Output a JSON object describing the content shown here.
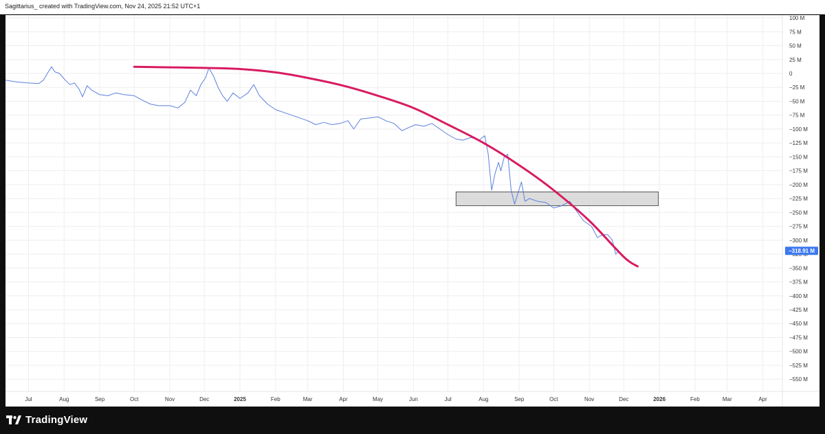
{
  "header": {
    "caption": "Sagittarius_ created with TradingView.com, Nov 24, 2025 21:52 UTC+1"
  },
  "footer": {
    "brand": "TradingView"
  },
  "colors": {
    "series_line": "#5b7fe0",
    "arc": "#d81b60",
    "zone_fill": "#d6d6d6",
    "zone_border": "#333333",
    "price_tag": "#3c78f0",
    "grid": "#eeeeee"
  },
  "chart_data": {
    "type": "line",
    "y_unit": "M",
    "ylim": [
      -570,
      100
    ],
    "y_ticks": [
      {
        "value": 100,
        "label": "100 M"
      },
      {
        "value": 75,
        "label": "75 M"
      },
      {
        "value": 50,
        "label": "50 M"
      },
      {
        "value": 25,
        "label": "25 M"
      },
      {
        "value": 0,
        "label": "0"
      },
      {
        "value": -25,
        "label": "−25 M"
      },
      {
        "value": -50,
        "label": "−50 M"
      },
      {
        "value": -75,
        "label": "−75 M"
      },
      {
        "value": -100,
        "label": "−100 M"
      },
      {
        "value": -125,
        "label": "−125 M"
      },
      {
        "value": -150,
        "label": "−150 M"
      },
      {
        "value": -175,
        "label": "−175 M"
      },
      {
        "value": -200,
        "label": "−200 M"
      },
      {
        "value": -225,
        "label": "−225 M"
      },
      {
        "value": -250,
        "label": "−250 M"
      },
      {
        "value": -275,
        "label": "−275 M"
      },
      {
        "value": -300,
        "label": "−300 M"
      },
      {
        "value": -325,
        "label": "−325 M"
      },
      {
        "value": -350,
        "label": "−350 M"
      },
      {
        "value": -375,
        "label": "−375 M"
      },
      {
        "value": -400,
        "label": "−400 M"
      },
      {
        "value": -425,
        "label": "−425 M"
      },
      {
        "value": -450,
        "label": "−450 M"
      },
      {
        "value": -475,
        "label": "−475 M"
      },
      {
        "value": -500,
        "label": "−500 M"
      },
      {
        "value": -525,
        "label": "−525 M"
      },
      {
        "value": -550,
        "label": "−550 M"
      }
    ],
    "x_ticks": [
      {
        "label": "Jul",
        "date": "2024-07-01"
      },
      {
        "label": "Aug",
        "date": "2024-08-01"
      },
      {
        "label": "Sep",
        "date": "2024-09-01"
      },
      {
        "label": "Oct",
        "date": "2024-10-01"
      },
      {
        "label": "Nov",
        "date": "2024-11-01"
      },
      {
        "label": "Dec",
        "date": "2024-12-01"
      },
      {
        "label": "2025",
        "date": "2025-01-01",
        "bold": true
      },
      {
        "label": "Feb",
        "date": "2025-02-01"
      },
      {
        "label": "Mar",
        "date": "2025-03-01"
      },
      {
        "label": "Apr",
        "date": "2025-04-01"
      },
      {
        "label": "May",
        "date": "2025-05-01"
      },
      {
        "label": "Jun",
        "date": "2025-06-01"
      },
      {
        "label": "Jul",
        "date": "2025-07-01"
      },
      {
        "label": "Aug",
        "date": "2025-08-01"
      },
      {
        "label": "Sep",
        "date": "2025-09-01"
      },
      {
        "label": "Oct",
        "date": "2025-10-01"
      },
      {
        "label": "Nov",
        "date": "2025-11-01"
      },
      {
        "label": "Dec",
        "date": "2025-12-01"
      },
      {
        "label": "2026",
        "date": "2026-01-01",
        "bold": true
      },
      {
        "label": "Feb",
        "date": "2026-02-01"
      },
      {
        "label": "Mar",
        "date": "2026-03-01"
      },
      {
        "label": "Apr",
        "date": "2026-04-01"
      }
    ],
    "xlim": [
      "2024-06-11",
      "2026-04-18"
    ],
    "series": [
      {
        "values": [
          [
            "2024-06-11",
            -12
          ],
          [
            "2024-06-20",
            -15
          ],
          [
            "2024-06-30",
            -17
          ],
          [
            "2024-07-10",
            -18
          ],
          [
            "2024-07-14",
            -12
          ],
          [
            "2024-07-18",
            2
          ],
          [
            "2024-07-21",
            12
          ],
          [
            "2024-07-24",
            3
          ],
          [
            "2024-07-28",
            0
          ],
          [
            "2024-08-02",
            -12
          ],
          [
            "2024-08-06",
            -20
          ],
          [
            "2024-08-10",
            -17
          ],
          [
            "2024-08-14",
            -28
          ],
          [
            "2024-08-17",
            -42
          ],
          [
            "2024-08-21",
            -22
          ],
          [
            "2024-08-25",
            -30
          ],
          [
            "2024-09-01",
            -38
          ],
          [
            "2024-09-08",
            -40
          ],
          [
            "2024-09-15",
            -35
          ],
          [
            "2024-09-22",
            -38
          ],
          [
            "2024-10-01",
            -40
          ],
          [
            "2024-10-08",
            -48
          ],
          [
            "2024-10-15",
            -55
          ],
          [
            "2024-10-22",
            -58
          ],
          [
            "2024-11-01",
            -58
          ],
          [
            "2024-11-08",
            -62
          ],
          [
            "2024-11-14",
            -52
          ],
          [
            "2024-11-19",
            -30
          ],
          [
            "2024-11-24",
            -40
          ],
          [
            "2024-11-28",
            -20
          ],
          [
            "2024-12-02",
            -8
          ],
          [
            "2024-12-05",
            10
          ],
          [
            "2024-12-09",
            -5
          ],
          [
            "2024-12-13",
            -25
          ],
          [
            "2024-12-17",
            -40
          ],
          [
            "2024-12-21",
            -50
          ],
          [
            "2024-12-26",
            -35
          ],
          [
            "2025-01-01",
            -45
          ],
          [
            "2025-01-08",
            -35
          ],
          [
            "2025-01-13",
            -20
          ],
          [
            "2025-01-18",
            -40
          ],
          [
            "2025-01-25",
            -55
          ],
          [
            "2025-02-01",
            -65
          ],
          [
            "2025-02-08",
            -70
          ],
          [
            "2025-02-15",
            -75
          ],
          [
            "2025-02-22",
            -80
          ],
          [
            "2025-03-01",
            -85
          ],
          [
            "2025-03-08",
            -92
          ],
          [
            "2025-03-15",
            -88
          ],
          [
            "2025-03-22",
            -92
          ],
          [
            "2025-03-29",
            -90
          ],
          [
            "2025-04-05",
            -85
          ],
          [
            "2025-04-10",
            -100
          ],
          [
            "2025-04-16",
            -82
          ],
          [
            "2025-04-24",
            -80
          ],
          [
            "2025-05-01",
            -78
          ],
          [
            "2025-05-08",
            -85
          ],
          [
            "2025-05-15",
            -90
          ],
          [
            "2025-05-22",
            -103
          ],
          [
            "2025-05-27",
            -98
          ],
          [
            "2025-06-03",
            -92
          ],
          [
            "2025-06-10",
            -95
          ],
          [
            "2025-06-17",
            -90
          ],
          [
            "2025-06-24",
            -100
          ],
          [
            "2025-07-01",
            -110
          ],
          [
            "2025-07-08",
            -118
          ],
          [
            "2025-07-14",
            -120
          ],
          [
            "2025-07-21",
            -115
          ],
          [
            "2025-07-28",
            -120
          ],
          [
            "2025-08-02",
            -112
          ],
          [
            "2025-08-05",
            -145
          ],
          [
            "2025-08-08",
            -210
          ],
          [
            "2025-08-11",
            -180
          ],
          [
            "2025-08-14",
            -160
          ],
          [
            "2025-08-16",
            -175
          ],
          [
            "2025-08-19",
            -150
          ],
          [
            "2025-08-22",
            -145
          ],
          [
            "2025-08-25",
            -210
          ],
          [
            "2025-08-28",
            -235
          ],
          [
            "2025-08-31",
            -215
          ],
          [
            "2025-09-03",
            -195
          ],
          [
            "2025-09-06",
            -230
          ],
          [
            "2025-09-10",
            -225
          ],
          [
            "2025-09-17",
            -230
          ],
          [
            "2025-09-24",
            -232
          ],
          [
            "2025-10-01",
            -242
          ],
          [
            "2025-10-08",
            -238
          ],
          [
            "2025-10-15",
            -230
          ],
          [
            "2025-10-20",
            -245
          ],
          [
            "2025-10-27",
            -265
          ],
          [
            "2025-11-03",
            -275
          ],
          [
            "2025-11-08",
            -295
          ],
          [
            "2025-11-13",
            -290
          ],
          [
            "2025-11-17",
            -290
          ],
          [
            "2025-11-21",
            -300
          ],
          [
            "2025-11-24",
            -325
          ],
          [
            "2025-11-27",
            -319
          ]
        ]
      }
    ],
    "last_value_label": "−318.91 M",
    "annotations": {
      "curve": [
        [
          "2024-10-01",
          12
        ],
        [
          "2024-12-01",
          10
        ],
        [
          "2025-01-01",
          8
        ],
        [
          "2025-02-01",
          2
        ],
        [
          "2025-03-01",
          -8
        ],
        [
          "2025-04-01",
          -22
        ],
        [
          "2025-05-01",
          -40
        ],
        [
          "2025-06-01",
          -62
        ],
        [
          "2025-07-01",
          -92
        ],
        [
          "2025-08-01",
          -125
        ],
        [
          "2025-09-01",
          -165
        ],
        [
          "2025-10-01",
          -210
        ],
        [
          "2025-11-01",
          -265
        ],
        [
          "2025-12-01",
          -330
        ],
        [
          "2025-12-13",
          -347
        ]
      ],
      "zone": {
        "x_start": "2025-07-08",
        "x_end": "2025-12-31",
        "y_top": -213,
        "y_bottom": -238
      }
    }
  }
}
